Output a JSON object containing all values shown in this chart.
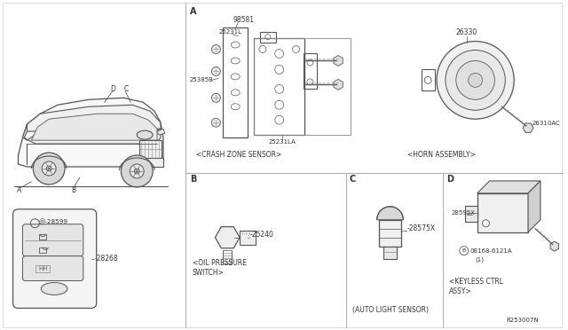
{
  "bg_color": "#ffffff",
  "line_color": "#555555",
  "text_color": "#333333",
  "fig_width": 6.4,
  "fig_height": 3.72,
  "ref_code": "R253007N",
  "part_98581": "98581",
  "part_25231L": "25231L",
  "part_25385B": "25385B",
  "part_25231LA": "25231LA",
  "part_26330": "26330",
  "part_26310AC": "26310AC",
  "part_25240": "25240",
  "part_28575X": "28575X",
  "part_28595X": "28595X",
  "part_08168": "B08168-6121A",
  "part_1": "(1)",
  "part_28599": "28599",
  "part_28268": "28268",
  "label_crash": "<CRASH ZONE SENSOR>",
  "label_horn": "<HORN ASSEMBLY>",
  "label_oil_1": "<OIL PRESSURE",
  "label_oil_2": "SWITCH>",
  "label_auto": "(AUTO LIGHT SENSOR)",
  "label_keyless_1": "<KEYLESS CTRL",
  "label_keyless_2": "ASSY>",
  "label_A": "A",
  "label_B": "B",
  "label_C": "C",
  "label_D": "D"
}
